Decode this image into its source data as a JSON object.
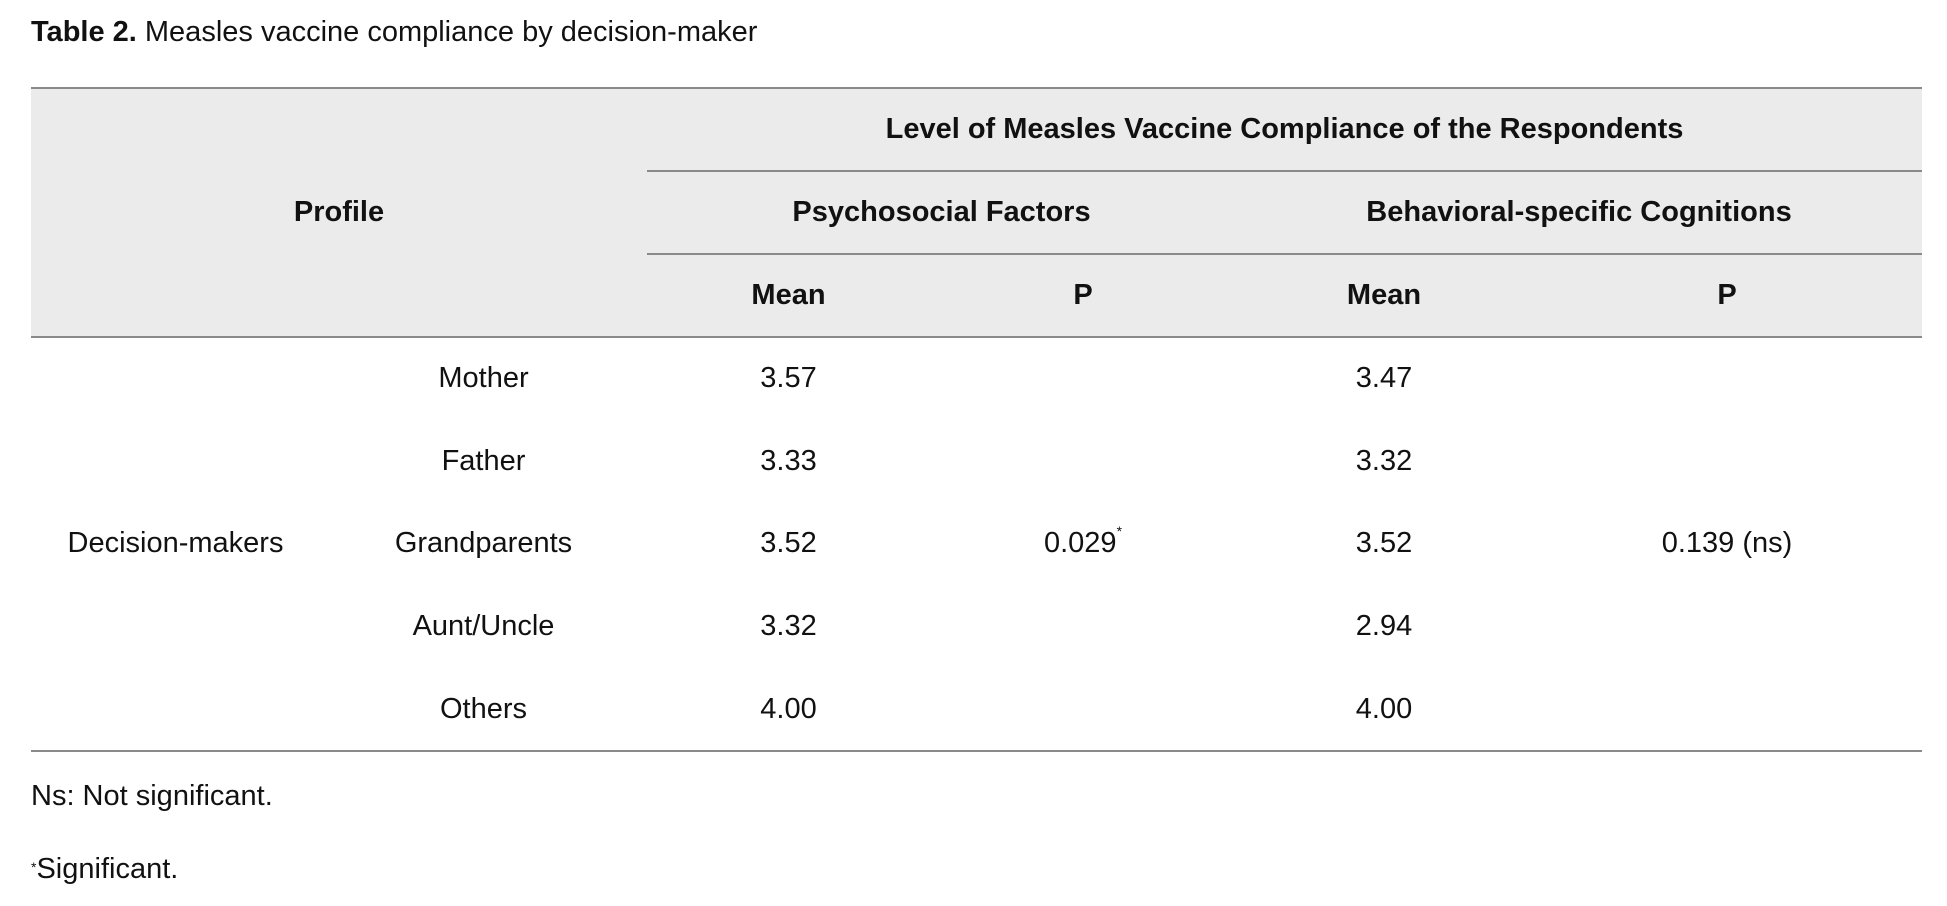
{
  "caption": {
    "label": "Table 2.",
    "text": " Measles vaccine compliance by decision-maker"
  },
  "table": {
    "header": {
      "profile": "Profile",
      "overall": "Level of Measles Vaccine Compliance of the Respondents",
      "groups": [
        "Psychosocial Factors",
        "Behavioral-specific Cognitions"
      ],
      "columns": [
        "Mean",
        "P",
        "Mean",
        "P"
      ]
    },
    "group_label": "Decision-makers",
    "rows": [
      {
        "profile": "Mother",
        "psych_mean": "3.57",
        "beh_mean": "3.47"
      },
      {
        "profile": "Father",
        "psych_mean": "3.33",
        "beh_mean": "3.32"
      },
      {
        "profile": "Grandparents",
        "psych_mean": "3.52",
        "beh_mean": "3.52"
      },
      {
        "profile": "Aunt/Uncle",
        "psych_mean": "3.32",
        "beh_mean": "2.94"
      },
      {
        "profile": "Others",
        "psych_mean": "4.00",
        "beh_mean": "4.00"
      }
    ],
    "psych_p": "0.029",
    "psych_p_mark": "*",
    "beh_p": "0.139 (ns)"
  },
  "notes": {
    "ns": "Ns: Not significant.",
    "sig_mark": "*",
    "sig": "Significant."
  }
}
